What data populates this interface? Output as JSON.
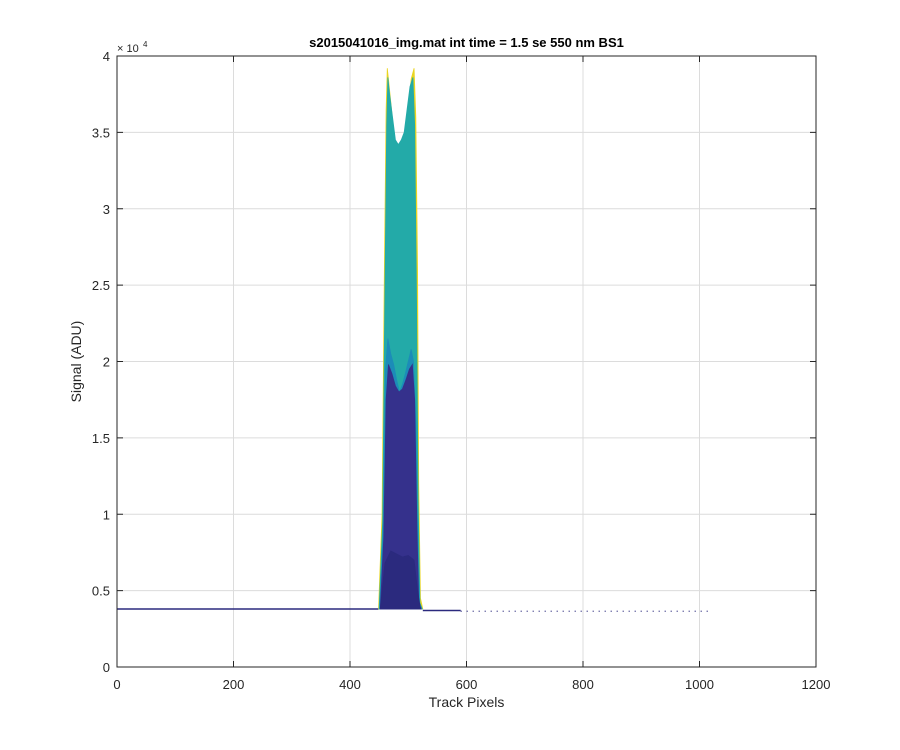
{
  "chart_data": {
    "type": "area",
    "title": "s2015041016_img.mat int time = 1.5 se  550 nm BS1",
    "xlabel": "Track Pixels",
    "ylabel": "Signal (ADU)",
    "xlim": [
      0,
      1200
    ],
    "ylim": [
      0,
      40000
    ],
    "x_ticks": [
      0,
      200,
      400,
      600,
      800,
      1000,
      1200
    ],
    "x_tick_labels": [
      "0",
      "200",
      "400",
      "600",
      "800",
      "1000",
      "1200"
    ],
    "y_ticks": [
      0,
      5000,
      10000,
      15000,
      20000,
      25000,
      30000,
      35000,
      40000
    ],
    "y_tick_labels": [
      "0",
      "0.5",
      "1",
      "1.5",
      "2",
      "2.5",
      "3",
      "3.5",
      "4"
    ],
    "y_exponent_base": "× 10",
    "y_exponent_power": "4",
    "grid": true,
    "baseline": 3800,
    "series": [
      {
        "color": "#EAD520",
        "x": [
          449,
          455,
          459,
          462,
          464,
          466,
          470,
          475,
          480,
          485,
          490,
          495,
          500,
          505,
          510,
          513,
          516,
          518,
          521,
          525
        ],
        "y": [
          3800,
          10000,
          26000,
          36500,
          39200,
          38500,
          37000,
          35000,
          34000,
          34200,
          34500,
          35000,
          36500,
          38500,
          39200,
          36000,
          26000,
          12000,
          4500,
          3800
        ]
      },
      {
        "color": "#23AAA8",
        "x": [
          450,
          456,
          460,
          463,
          465,
          468,
          473,
          478,
          483,
          488,
          493,
          498,
          503,
          508,
          511,
          514,
          517,
          520,
          524
        ],
        "y": [
          3800,
          9500,
          25000,
          35500,
          38600,
          37500,
          36000,
          34500,
          34200,
          34500,
          35000,
          36500,
          38000,
          38600,
          35500,
          25000,
          11000,
          4200,
          3800
        ]
      },
      {
        "color": "#1C8CB8",
        "x": [
          451,
          457,
          461,
          465,
          470,
          475,
          480,
          485,
          490,
          495,
          500,
          505,
          509,
          513,
          516,
          519,
          523
        ],
        "y": [
          3800,
          9000,
          19500,
          21500,
          20500,
          19800,
          18800,
          18000,
          18500,
          19200,
          20000,
          20800,
          20000,
          16000,
          8500,
          4200,
          3800
        ]
      },
      {
        "color": "#35318C",
        "x": [
          452,
          458,
          462,
          466,
          472,
          478,
          484,
          490,
          496,
          502,
          507,
          511,
          515,
          518,
          522
        ],
        "y": [
          3800,
          8500,
          17500,
          19800,
          19200,
          18400,
          18000,
          18200,
          18800,
          19500,
          19800,
          17500,
          9000,
          4200,
          3800
        ]
      },
      {
        "color": "#2B2A7E",
        "x": [
          452,
          460,
          470,
          480,
          490,
          500,
          510,
          516,
          521
        ],
        "y": [
          3800,
          6800,
          7600,
          7400,
          7200,
          7300,
          7000,
          5000,
          3800
        ]
      }
    ]
  }
}
